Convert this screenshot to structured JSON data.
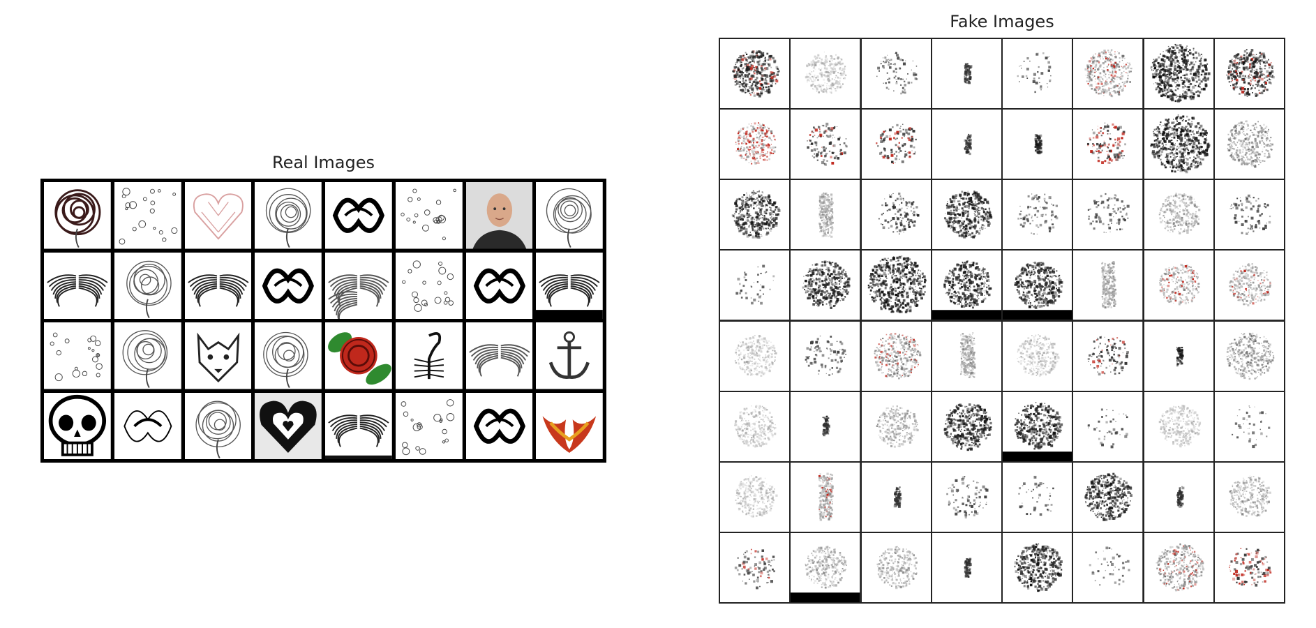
{
  "real_title": "Real Images",
  "fake_title": "Fake Images",
  "real_tiles": [
    "rose",
    "guitars-pattern",
    "pink-heart",
    "mandala-flower",
    "tribal-swirl",
    "flash-sheet",
    "face-photo",
    "floral-sketch",
    "wings",
    "paisley-sketch",
    "wings",
    "tribal-heart",
    "double-wings",
    "figure-sketch",
    "swirl-heart",
    "wings-black-bar",
    "icon-sheet",
    "rose-sketch",
    "wolf-head",
    "rose-stem",
    "red-rose-leaves",
    "scorpion",
    "feather-wings",
    "anchor",
    "skull",
    "small-tribal",
    "flowers-sketch",
    "heart-shading",
    "wings-dark",
    "faint-sketch",
    "tribal-flames",
    "red-flames"
  ],
  "fake_tiles": [
    "dark-blob-red",
    "faint-gray",
    "faint-scatter",
    "thin-line",
    "very-faint",
    "dark-gray-red",
    "dark-heavy",
    "dark-red",
    "gray-red-heart",
    "black-red-v",
    "black-red-scatter",
    "thin-line",
    "thin-line-dark",
    "red-blob",
    "dark-heavy",
    "dark-gray",
    "dark-blob",
    "gray-column",
    "black-scatter",
    "dark-blob",
    "faint-scatter",
    "faint-scatter",
    "gray-round",
    "faint-scatter",
    "very-faint",
    "dark-blob",
    "dark-heavy",
    "dark-bottom-bar",
    "dark-bottom-bar",
    "gray-column",
    "gray-red",
    "gray-red-small",
    "faint-gray",
    "faint-v",
    "dark-gray-red",
    "gray-column",
    "faint-gray",
    "red-v",
    "thin-line-dark",
    "dark-gray-side",
    "faint-gray",
    "thin-line",
    "gray-heart",
    "dark-blob",
    "dark-bottom-bar",
    "very-faint",
    "faint-gray",
    "very-faint",
    "faint-gray",
    "gray-red-column",
    "thin-line",
    "faint-scatter",
    "very-faint",
    "dark-blob",
    "thin-line",
    "gray-heart",
    "faint-scatter-red",
    "gray-bottom-bar",
    "gray-heart",
    "thin-line",
    "dark-scatter",
    "very-faint",
    "dark-gray-red",
    "red-heart"
  ]
}
